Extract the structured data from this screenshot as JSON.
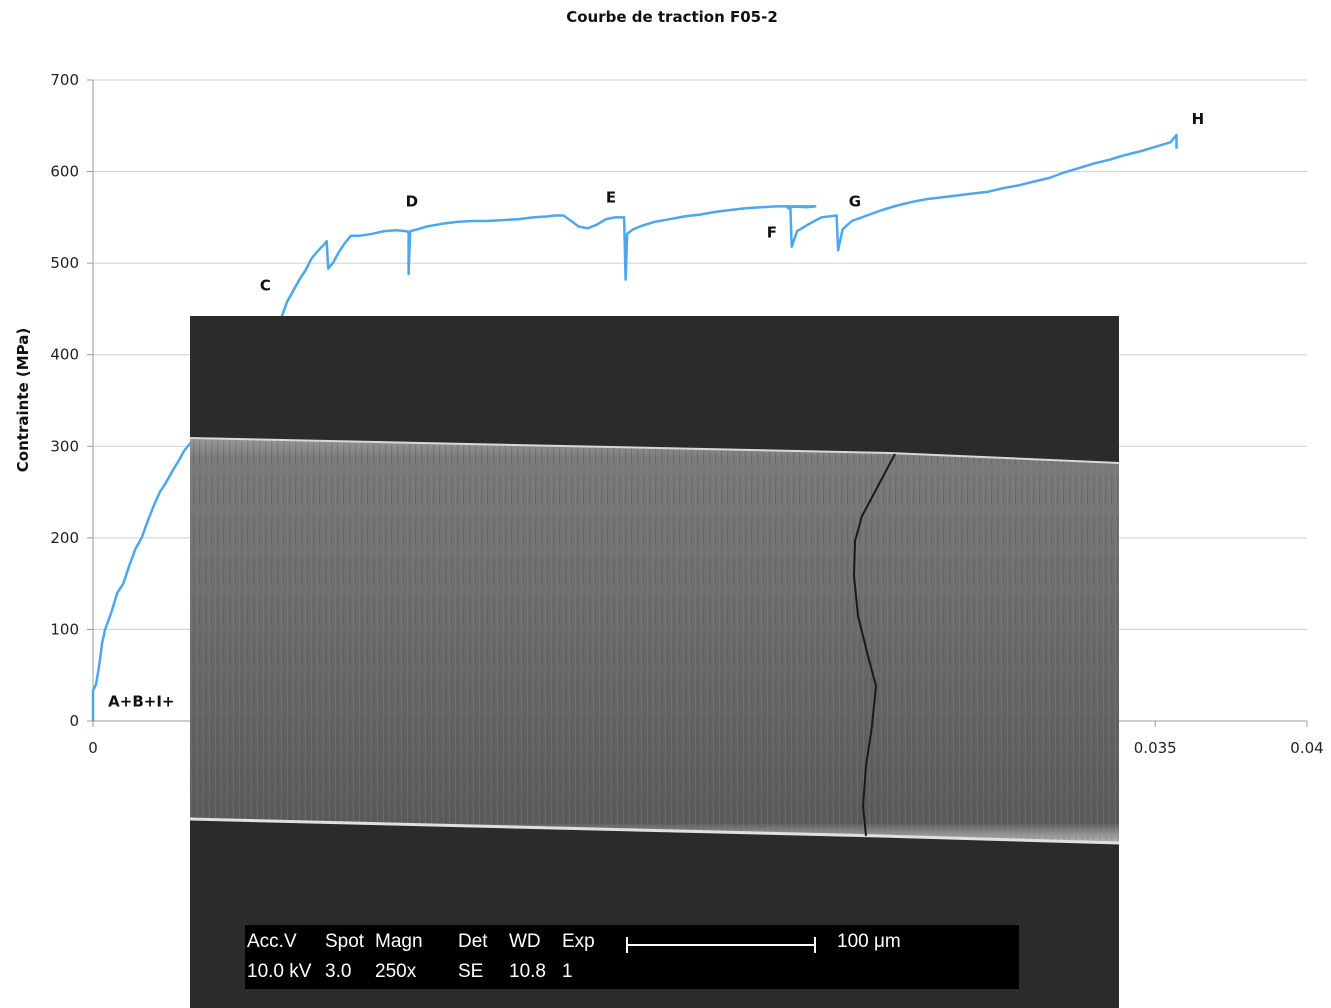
{
  "chart_data": {
    "type": "line",
    "title": "Courbe de traction F05-2",
    "xlabel": "",
    "ylabel": "Contrainte (MPa)",
    "xlim": [
      0,
      0.04
    ],
    "ylim": [
      0,
      700
    ],
    "x_ticks": [
      "0",
      "0.035",
      "0.04"
    ],
    "y_ticks": [
      "0",
      "100",
      "200",
      "300",
      "400",
      "500",
      "600",
      "700"
    ],
    "y_tick_values": [
      0,
      100,
      200,
      300,
      400,
      500,
      600,
      700
    ],
    "x_tick_values": [
      0,
      0.035,
      0.04
    ],
    "grid": true,
    "line_color": "#4da6f0",
    "series": [
      {
        "points": [
          [
            0,
            0
          ],
          [
            0,
            33
          ],
          [
            0.0001,
            40
          ],
          [
            0.0002,
            60
          ],
          [
            0.0003,
            85
          ],
          [
            0.0004,
            100
          ],
          [
            0.0006,
            118
          ],
          [
            0.0008,
            140
          ],
          [
            0.001,
            150
          ],
          [
            0.0012,
            170
          ],
          [
            0.0014,
            188
          ],
          [
            0.0016,
            200
          ],
          [
            0.0018,
            218
          ],
          [
            0.002,
            235
          ],
          [
            0.0022,
            250
          ],
          [
            0.0024,
            260
          ],
          [
            0.0026,
            272
          ],
          [
            0.0028,
            283
          ],
          [
            0.003,
            295
          ],
          [
            0.0032,
            303
          ],
          [
            0.0058,
            405
          ],
          [
            0.006,
            420
          ],
          [
            0.0062,
            440
          ],
          [
            0.0064,
            458
          ],
          [
            0.0066,
            470
          ],
          [
            0.0068,
            482
          ],
          [
            0.007,
            492
          ],
          [
            0.0072,
            505
          ],
          [
            0.0074,
            513
          ],
          [
            0.0076,
            520
          ],
          [
            0.0077,
            524
          ],
          [
            0.00775,
            494
          ],
          [
            0.0079,
            500
          ],
          [
            0.0081,
            512
          ],
          [
            0.0083,
            522
          ],
          [
            0.0085,
            530
          ],
          [
            0.0088,
            530
          ],
          [
            0.0092,
            532
          ],
          [
            0.0096,
            535
          ],
          [
            0.01,
            536
          ],
          [
            0.0103,
            535
          ],
          [
            0.0104,
            534
          ],
          [
            0.0104,
            488
          ],
          [
            0.01045,
            535
          ],
          [
            0.0107,
            537
          ],
          [
            0.011,
            540
          ],
          [
            0.0115,
            543
          ],
          [
            0.012,
            545
          ],
          [
            0.0125,
            546
          ],
          [
            0.013,
            546
          ],
          [
            0.0135,
            547
          ],
          [
            0.014,
            548
          ],
          [
            0.0145,
            550
          ],
          [
            0.015,
            551
          ],
          [
            0.0152,
            552
          ],
          [
            0.0155,
            552
          ],
          [
            0.0158,
            545
          ],
          [
            0.016,
            540
          ],
          [
            0.0163,
            538
          ],
          [
            0.0166,
            542
          ],
          [
            0.0169,
            548
          ],
          [
            0.0172,
            550
          ],
          [
            0.0175,
            550
          ],
          [
            0.01755,
            482
          ],
          [
            0.0176,
            532
          ],
          [
            0.0178,
            537
          ],
          [
            0.0181,
            541
          ],
          [
            0.0185,
            545
          ],
          [
            0.019,
            548
          ],
          [
            0.0195,
            551
          ],
          [
            0.02,
            553
          ],
          [
            0.0205,
            556
          ],
          [
            0.021,
            558
          ],
          [
            0.0215,
            560
          ],
          [
            0.022,
            561
          ],
          [
            0.0225,
            562
          ],
          [
            0.023,
            562
          ],
          [
            0.0235,
            561
          ],
          [
            0.0238,
            562
          ],
          [
            0.0231,
            562
          ],
          [
            0.0229,
            560
          ],
          [
            0.02298,
            560
          ],
          [
            0.02302,
            518
          ],
          [
            0.0232,
            535
          ],
          [
            0.0236,
            543
          ],
          [
            0.024,
            550
          ],
          [
            0.0245,
            552
          ],
          [
            0.02455,
            514
          ],
          [
            0.0247,
            537
          ],
          [
            0.025,
            546
          ],
          [
            0.0255,
            552
          ],
          [
            0.026,
            558
          ],
          [
            0.0265,
            563
          ],
          [
            0.027,
            567
          ],
          [
            0.0275,
            570
          ],
          [
            0.028,
            572
          ],
          [
            0.0285,
            574
          ],
          [
            0.029,
            576
          ],
          [
            0.0295,
            578
          ],
          [
            0.03,
            582
          ],
          [
            0.0305,
            585
          ],
          [
            0.031,
            589
          ],
          [
            0.0315,
            593
          ],
          [
            0.032,
            599
          ],
          [
            0.0325,
            604
          ],
          [
            0.033,
            609
          ],
          [
            0.0335,
            613
          ],
          [
            0.034,
            618
          ],
          [
            0.0345,
            622
          ],
          [
            0.035,
            627
          ],
          [
            0.0355,
            632
          ],
          [
            0.0357,
            640
          ],
          [
            0.0357,
            625
          ]
        ]
      }
    ],
    "annotations": [
      {
        "label": "A+B+I+",
        "x": 0.0005,
        "y": 16
      },
      {
        "label": "C",
        "x": 0.0055,
        "y": 470
      },
      {
        "label": "D",
        "x": 0.0103,
        "y": 562
      },
      {
        "label": "E",
        "x": 0.0169,
        "y": 566
      },
      {
        "label": "F",
        "x": 0.0222,
        "y": 528
      },
      {
        "label": "G",
        "x": 0.0249,
        "y": 562
      },
      {
        "label": "H",
        "x": 0.0362,
        "y": 652
      }
    ]
  },
  "sem_overlay": {
    "info_labels": [
      "Acc.V",
      "Spot",
      "Magn",
      "Det",
      "WD",
      "Exp"
    ],
    "info_values": [
      "10.0 kV",
      "3.0",
      "250x",
      "SE",
      "10.8",
      "1"
    ],
    "scale_label": "100 μm"
  }
}
